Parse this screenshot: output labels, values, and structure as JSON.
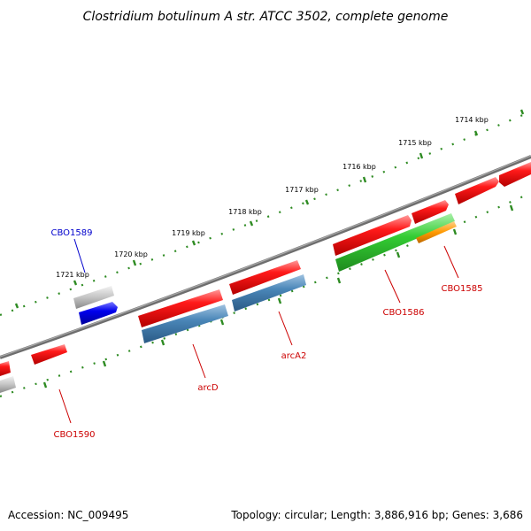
{
  "title": "Clostridium botulinum A str. ATCC 3502, complete genome",
  "footer": {
    "accession": "Accession: NC_009495",
    "summary": "Topology: circular; Length: 3,886,916 bp; Genes: 3,686"
  },
  "colors": {
    "backbone": "#6e6e6e",
    "tick": "#2e8b22",
    "red": "#ff0000",
    "steel": "#4a86b8",
    "green": "#33cc33",
    "orange": "#ff9900",
    "grey": "#c0c0c0",
    "blue": "#0000ee"
  },
  "scale_labels": [
    "1714 kbp",
    "1715 kbp",
    "1716 kbp",
    "1717 kbp",
    "1718 kbp",
    "1719 kbp",
    "1720 kbp",
    "1721 kbp"
  ],
  "gene_labels": [
    {
      "name": "CBO1589",
      "color": "#0000cc"
    },
    {
      "name": "CBO1585",
      "color": "#cc0000"
    },
    {
      "name": "CBO1586",
      "color": "#cc0000"
    },
    {
      "name": "arcA2",
      "color": "#cc0000"
    },
    {
      "name": "arcD",
      "color": "#cc0000"
    },
    {
      "name": "CBO1590",
      "color": "#cc0000"
    }
  ]
}
